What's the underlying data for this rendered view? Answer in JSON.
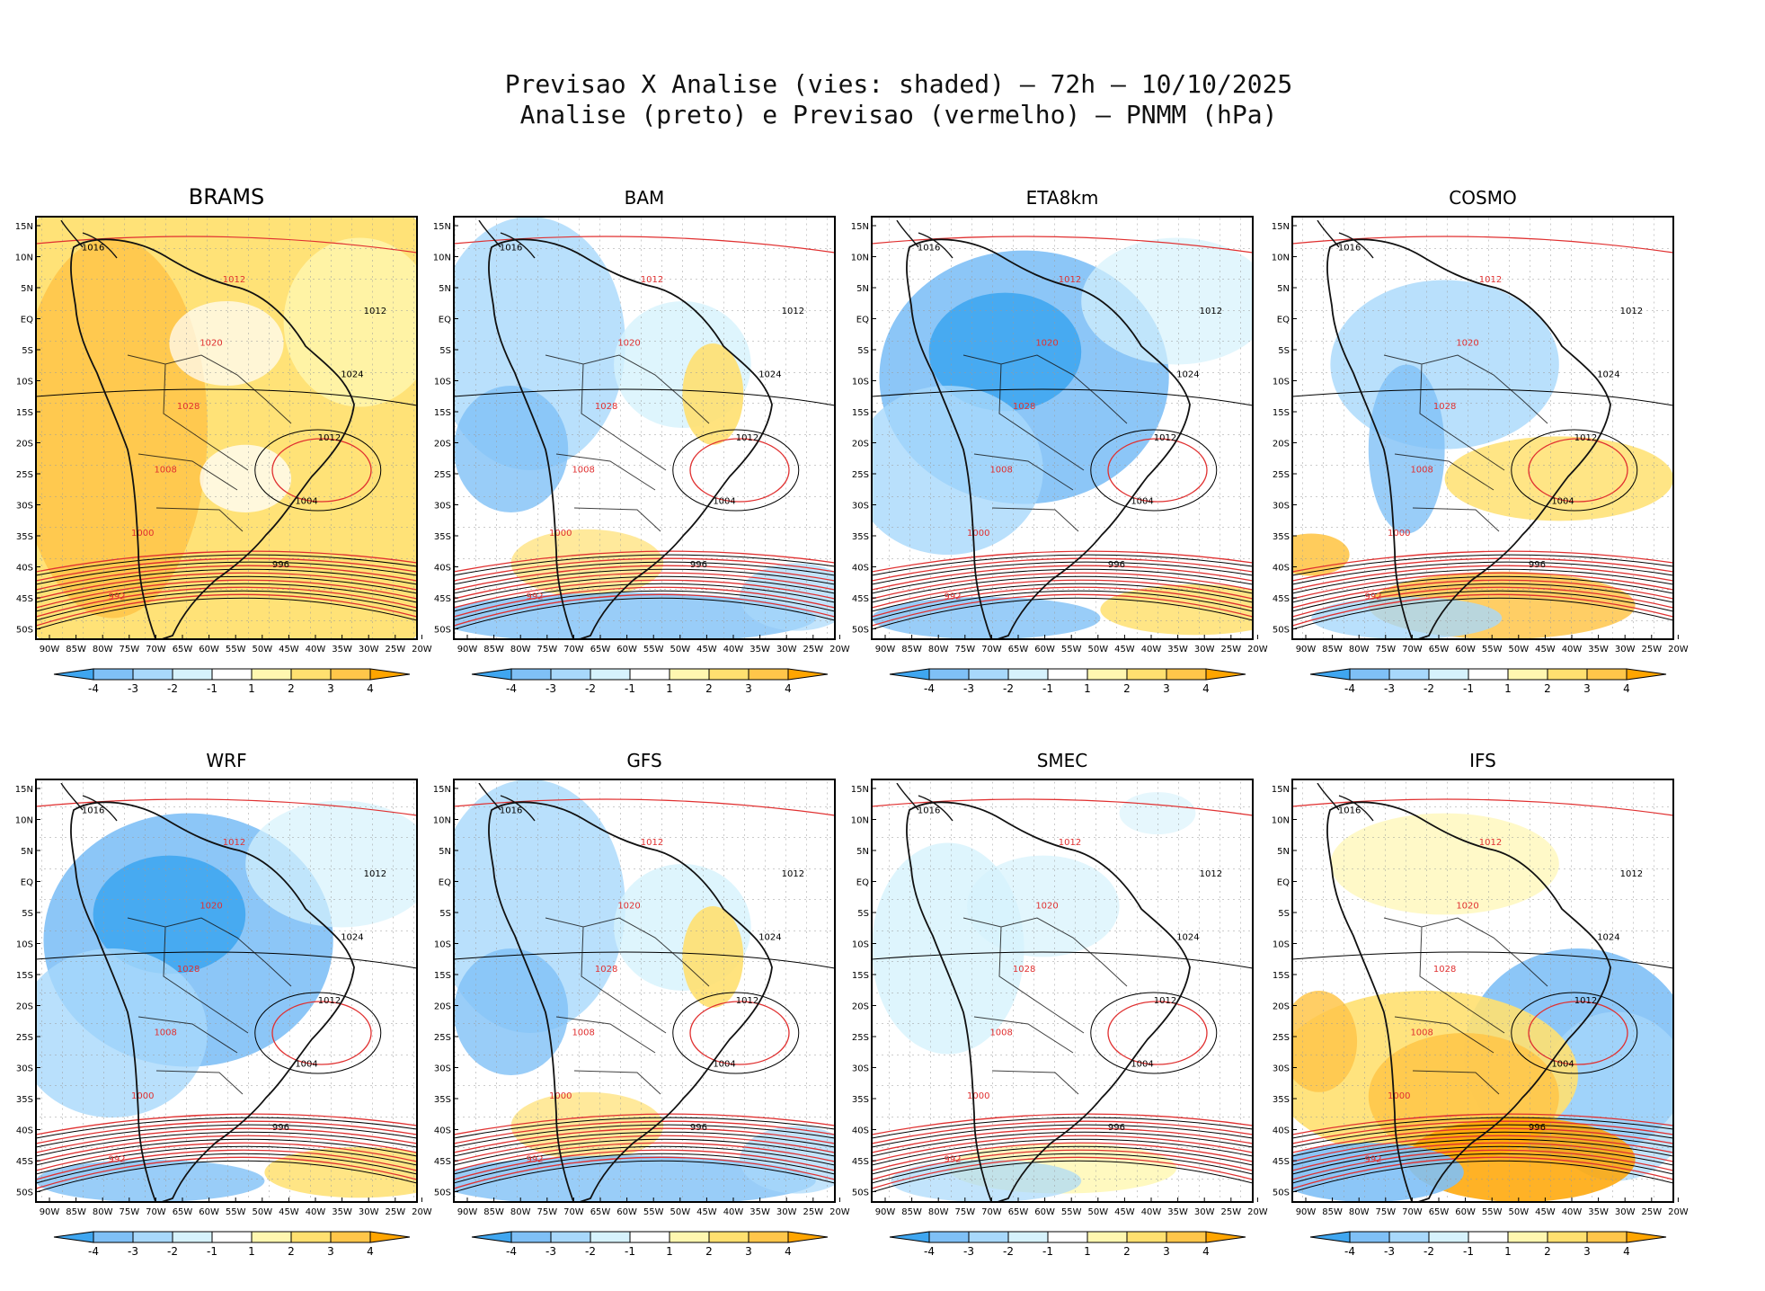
{
  "title": {
    "line1": "Previsao X Analise (vies: shaded) – 72h – 10/10/2025",
    "line2": "Analise (preto) e Previsao (vermelho) – PNMM (hPa)"
  },
  "chart_data": [
    {
      "type": "heatmap",
      "model": "BRAMS",
      "bias_pattern": "positive"
    },
    {
      "type": "heatmap",
      "model": "BAM",
      "bias_pattern": "mixed-negative"
    },
    {
      "type": "heatmap",
      "model": "ETA8km",
      "bias_pattern": "negative"
    },
    {
      "type": "heatmap",
      "model": "COSMO",
      "bias_pattern": "mixed"
    },
    {
      "type": "heatmap",
      "model": "WRF",
      "bias_pattern": "negative"
    },
    {
      "type": "heatmap",
      "model": "GFS",
      "bias_pattern": "mixed-negative"
    },
    {
      "type": "heatmap",
      "model": "SMEC",
      "bias_pattern": "weak"
    },
    {
      "type": "heatmap",
      "model": "IFS",
      "bias_pattern": "dipole"
    }
  ],
  "axes": {
    "lat_labels": [
      "15N",
      "10N",
      "5N",
      "EQ",
      "5S",
      "10S",
      "15S",
      "20S",
      "25S",
      "30S",
      "35S",
      "40S",
      "45S",
      "50S"
    ],
    "lon_labels": [
      "90W",
      "85W",
      "80W",
      "75W",
      "70W",
      "65W",
      "60W",
      "55W",
      "50W",
      "45W",
      "40W",
      "35W",
      "30W",
      "25W",
      "20W"
    ]
  },
  "colorbar": {
    "labels": [
      "-4",
      "-3",
      "-2",
      "-1",
      "1",
      "2",
      "3",
      "4"
    ],
    "colors": [
      "#3fa6f0",
      "#7fc0f6",
      "#a8d8fb",
      "#d6f2fc",
      "#ffffff",
      "#fff7b0",
      "#ffe070",
      "#ffc64a",
      "#ffa500"
    ]
  },
  "contours": {
    "analysis_color": "#000000",
    "forecast_color": "#e03030",
    "isobar_labels": [
      "1016",
      "1012",
      "1012",
      "1020",
      "1024",
      "1028",
      "1012",
      "1008",
      "1004",
      "1000",
      "996",
      "992"
    ]
  }
}
